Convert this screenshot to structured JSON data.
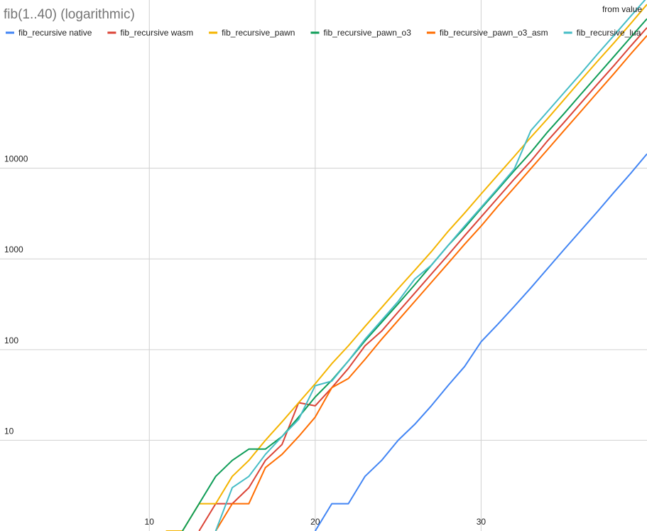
{
  "chart_data": {
    "type": "line",
    "title": "fib(1..40) (logarithmic)",
    "annotation": "from value",
    "x": [
      1,
      2,
      3,
      4,
      5,
      6,
      7,
      8,
      9,
      10,
      11,
      12,
      13,
      14,
      15,
      16,
      17,
      18,
      19,
      20,
      21,
      22,
      23,
      24,
      25,
      26,
      27,
      28,
      29,
      30,
      31,
      32,
      33,
      34,
      35,
      36,
      37,
      38,
      39,
      40
    ],
    "series": [
      {
        "name": "fib_recursive native",
        "color": "#4285f4",
        "values": [
          null,
          null,
          null,
          null,
          null,
          null,
          null,
          null,
          null,
          null,
          null,
          null,
          null,
          null,
          null,
          null,
          null,
          null,
          null,
          1,
          2,
          2,
          4,
          6,
          10,
          15,
          24,
          40,
          65,
          122,
          190,
          300,
          480,
          780,
          1270,
          2050,
          3300,
          5400,
          8700,
          14400
        ]
      },
      {
        "name": "fib_recursive wasm",
        "color": "#db4437",
        "values": [
          null,
          null,
          null,
          null,
          null,
          null,
          null,
          null,
          null,
          null,
          null,
          null,
          1,
          2,
          2,
          3,
          6,
          9,
          26,
          24,
          38,
          62,
          110,
          160,
          260,
          420,
          680,
          1100,
          1800,
          2900,
          4700,
          7600,
          12000,
          20000,
          32000,
          52000,
          84000,
          135000,
          220000,
          355000
        ]
      },
      {
        "name": "fib_recursive_pawn",
        "color": "#f4b400",
        "values": [
          null,
          null,
          null,
          null,
          null,
          null,
          null,
          null,
          null,
          null,
          1,
          1,
          2,
          2,
          4,
          6,
          10,
          16,
          26,
          42,
          70,
          110,
          180,
          290,
          470,
          750,
          1200,
          2000,
          3200,
          5200,
          8400,
          13500,
          22000,
          35000,
          57000,
          93000,
          150000,
          240000,
          390000,
          640000
        ]
      },
      {
        "name": "fib_recursive_pawn_o3",
        "color": "#0f9d58",
        "values": [
          null,
          null,
          null,
          null,
          null,
          null,
          null,
          null,
          null,
          null,
          null,
          1,
          2,
          4,
          6,
          8,
          8,
          11,
          18,
          30,
          46,
          75,
          125,
          200,
          320,
          520,
          850,
          1400,
          2200,
          3600,
          5800,
          9400,
          15000,
          25000,
          40000,
          65000,
          105000,
          170000,
          275000,
          445000
        ]
      },
      {
        "name": "fib_recursive_pawn_o3_asm",
        "color": "#ff6d01",
        "values": [
          null,
          null,
          null,
          null,
          null,
          null,
          null,
          null,
          null,
          null,
          null,
          null,
          null,
          1,
          2,
          2,
          5,
          7,
          11,
          18,
          38,
          48,
          78,
          130,
          210,
          340,
          550,
          890,
          1450,
          2300,
          3800,
          6100,
          9900,
          16000,
          26000,
          42000,
          68000,
          110000,
          180000,
          290000
        ]
      },
      {
        "name": "fib_recursive_lua",
        "color": "#46bdc6",
        "values": [
          null,
          null,
          null,
          null,
          null,
          null,
          null,
          null,
          null,
          null,
          null,
          null,
          null,
          1,
          3,
          4,
          7,
          11,
          17,
          40,
          45,
          75,
          130,
          210,
          340,
          600,
          850,
          1400,
          2300,
          3700,
          6000,
          9800,
          26000,
          42000,
          68000,
          110000,
          180000,
          290000,
          470000,
          760000
        ]
      }
    ],
    "xlim": [
      1,
      40
    ],
    "xticks": [
      10,
      20,
      30
    ],
    "ylim": [
      1,
      716000
    ],
    "yticks": [
      10,
      100,
      1000,
      10000
    ],
    "log_y": true,
    "grid": true,
    "legend": "top"
  }
}
